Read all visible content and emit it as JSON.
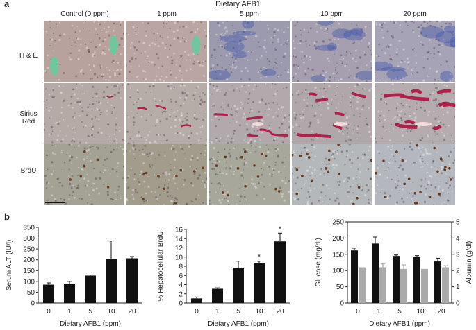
{
  "panel_a": {
    "letter": "a",
    "title": "Dietary AFB1",
    "columns": [
      "Control (0 ppm)",
      "1 ppm",
      "5 ppm",
      "10 ppm",
      "20 ppm"
    ],
    "rows": [
      "H & E",
      "Sirius Red",
      "BrdU"
    ]
  },
  "panel_b": {
    "letter": "b"
  },
  "chart_data": [
    {
      "type": "bar",
      "categories": [
        "0",
        "1",
        "5",
        "10",
        "20"
      ],
      "values": [
        85,
        90,
        127,
        205,
        207
      ],
      "errors": [
        8,
        10,
        3,
        82,
        8
      ],
      "xlabel": "Dietary AFB1 (ppm)",
      "ylabel": "Serum ALT (IU/l)",
      "ylim": [
        0,
        350
      ],
      "yticks": [
        "0",
        "50",
        "100",
        "150",
        "200",
        "250",
        "300",
        "350"
      ]
    },
    {
      "type": "bar",
      "categories": [
        "0",
        "1",
        "5",
        "10",
        "20"
      ],
      "values": [
        1.0,
        3.1,
        7.7,
        8.7,
        13.4
      ],
      "errors": [
        0.3,
        0.2,
        1.4,
        0.4,
        1.8
      ],
      "annotations": [
        "",
        "",
        "",
        "*",
        "*"
      ],
      "xlabel": "Dietary AFB1 (ppm)",
      "ylabel": "% Hepatocellular BrdU",
      "ylim": [
        0,
        16
      ],
      "yticks": [
        "0",
        "2",
        "4",
        "6",
        "8",
        "10",
        "12",
        "14",
        "16"
      ]
    },
    {
      "type": "bar",
      "categories": [
        "0",
        "1",
        "5",
        "10",
        "20"
      ],
      "series": [
        {
          "values": [
            162,
            183,
            145,
            142,
            128
          ],
          "errors": [
            7,
            20,
            3,
            4,
            10
          ],
          "axis": "left",
          "color": "#111111"
        },
        {
          "values": [
            2.2,
            2.2,
            2.1,
            2.1,
            2.2
          ],
          "errors": [
            0.0,
            0.2,
            0.25,
            0.0,
            0.1
          ],
          "axis": "right",
          "color": "#aaaaaa"
        }
      ],
      "xlabel": "Dietary AFB1 (ppm)",
      "ylabel": "Glucose (mg/dl)",
      "y2label": "Albumin (g/dl)",
      "ylim": [
        0,
        250
      ],
      "y2lim": [
        0,
        5
      ],
      "yticks": [
        "0",
        "50",
        "100",
        "150",
        "200",
        "250"
      ],
      "y2ticks": [
        "0",
        "1",
        "2",
        "3",
        "4",
        "5"
      ]
    }
  ]
}
